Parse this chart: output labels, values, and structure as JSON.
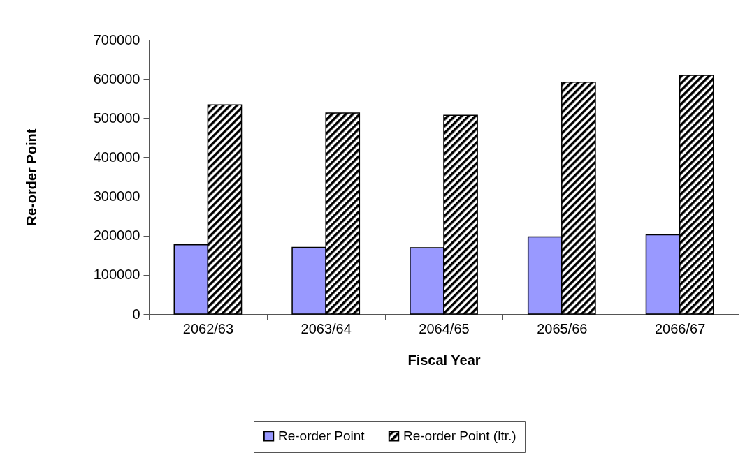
{
  "chart_data": {
    "type": "bar",
    "xlabel": "Fiscal Year",
    "ylabel": "Re-order Point",
    "categories": [
      "2062/63",
      "2063/64",
      "2064/65",
      "2065/66",
      "2066/67"
    ],
    "series": [
      {
        "name": "Re-order Point",
        "color": "#9999ff",
        "values": [
          177000,
          170000,
          169000,
          197000,
          202000
        ]
      },
      {
        "name": "Re-order Point (ltr.)",
        "color": "#000000",
        "values": [
          534000,
          513000,
          507000,
          592000,
          609000
        ]
      }
    ],
    "ylim": [
      0,
      700000
    ],
    "yticks": [
      0,
      100000,
      200000,
      300000,
      400000,
      500000,
      600000,
      700000
    ],
    "legend": "bottom"
  }
}
